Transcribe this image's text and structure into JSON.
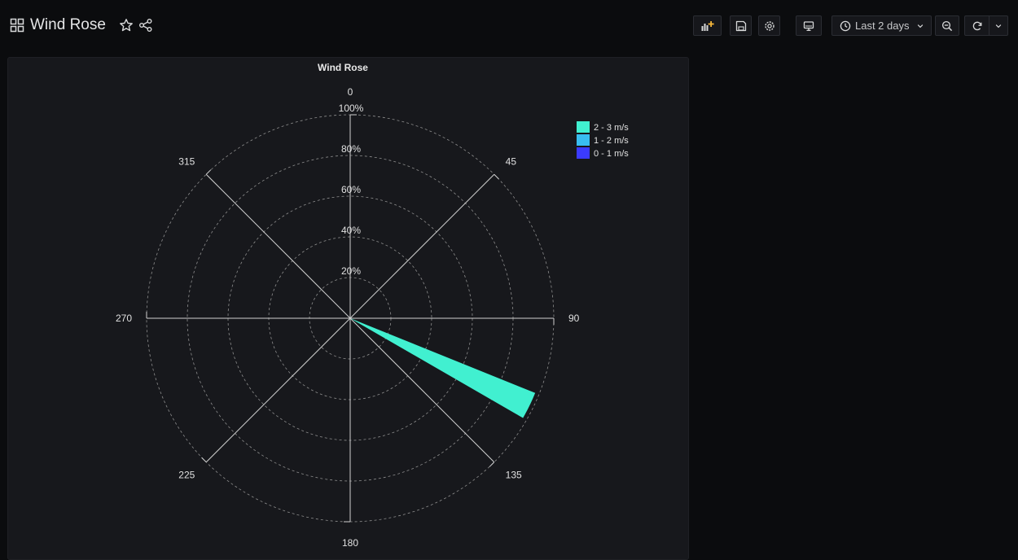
{
  "header": {
    "title": "Wind Rose",
    "time_range": "Last 2 days",
    "icons": [
      "dashboard-grid-icon",
      "star-icon",
      "share-icon",
      "add-panel-icon",
      "save-icon",
      "settings-icon",
      "tv-mode-icon",
      "clock-icon",
      "chevron-down-icon",
      "zoom-out-icon",
      "refresh-icon",
      "chevron-down-icon"
    ]
  },
  "colors": {
    "background": "#0b0c0e",
    "panel": "#17181c",
    "grid": "#8e8e8e",
    "series_2_3": "#41f0d0",
    "series_1_2": "#38bdf0",
    "series_0_1": "#3b3bff"
  },
  "chart_data": {
    "type": "windrose",
    "title": "Wind Rose",
    "direction_labels": [
      "0",
      "45",
      "90",
      "135",
      "180",
      "225",
      "270",
      "315"
    ],
    "radial_ticks": [
      "20%",
      "40%",
      "60%",
      "80%",
      "100%"
    ],
    "radial_max": 100,
    "sector_width_deg": 8,
    "grid": true,
    "legend_position": "top-right",
    "series": [
      {
        "name": "2 - 3 m/s",
        "color": "#41f0d0",
        "bins": [
          {
            "direction": 116,
            "value": 98
          }
        ]
      },
      {
        "name": "1 - 2 m/s",
        "color": "#38bdf0",
        "bins": []
      },
      {
        "name": "0 - 1 m/s",
        "color": "#3b3bff",
        "bins": []
      }
    ]
  }
}
